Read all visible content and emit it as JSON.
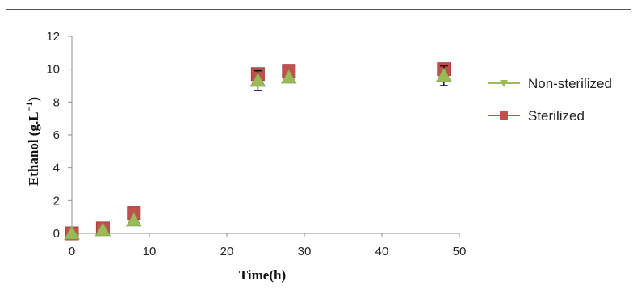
{
  "chart_data": {
    "type": "scatter",
    "xlabel": "Time(h)",
    "ylabel_main": "Ethanol (g.L",
    "ylabel_exp": "−1",
    "ylabel_close": ")",
    "xlim": [
      0,
      50
    ],
    "ylim": [
      0,
      12
    ],
    "xticks": [
      0,
      10,
      20,
      30,
      40,
      50
    ],
    "yticks": [
      0,
      2,
      4,
      6,
      8,
      10,
      12
    ],
    "xtick_labels": [
      "0",
      "10",
      "20",
      "30",
      "40",
      "50"
    ],
    "ytick_labels": [
      "0",
      "2",
      "4",
      "6",
      "8",
      "10",
      "12"
    ],
    "grid": false,
    "legend_position": "right",
    "series": [
      {
        "name": "Non-sterilized",
        "marker": "triangle",
        "color": "#9bbb59",
        "points": [
          {
            "x": 0,
            "y": 0.0
          },
          {
            "x": 4,
            "y": 0.2
          },
          {
            "x": 8,
            "y": 0.8
          },
          {
            "x": 24,
            "y": 9.3,
            "err": 0.6
          },
          {
            "x": 28,
            "y": 9.5
          },
          {
            "x": 48,
            "y": 9.6,
            "err": 0.6
          }
        ]
      },
      {
        "name": "Sterilized",
        "marker": "square",
        "color": "#c0504d",
        "points": [
          {
            "x": 0,
            "y": 0.0
          },
          {
            "x": 4,
            "y": 0.3
          },
          {
            "x": 8,
            "y": 1.25
          },
          {
            "x": 24,
            "y": 9.7,
            "err": 0.25
          },
          {
            "x": 28,
            "y": 9.9,
            "err": 0.35
          },
          {
            "x": 48,
            "y": 10.0
          }
        ]
      }
    ]
  }
}
